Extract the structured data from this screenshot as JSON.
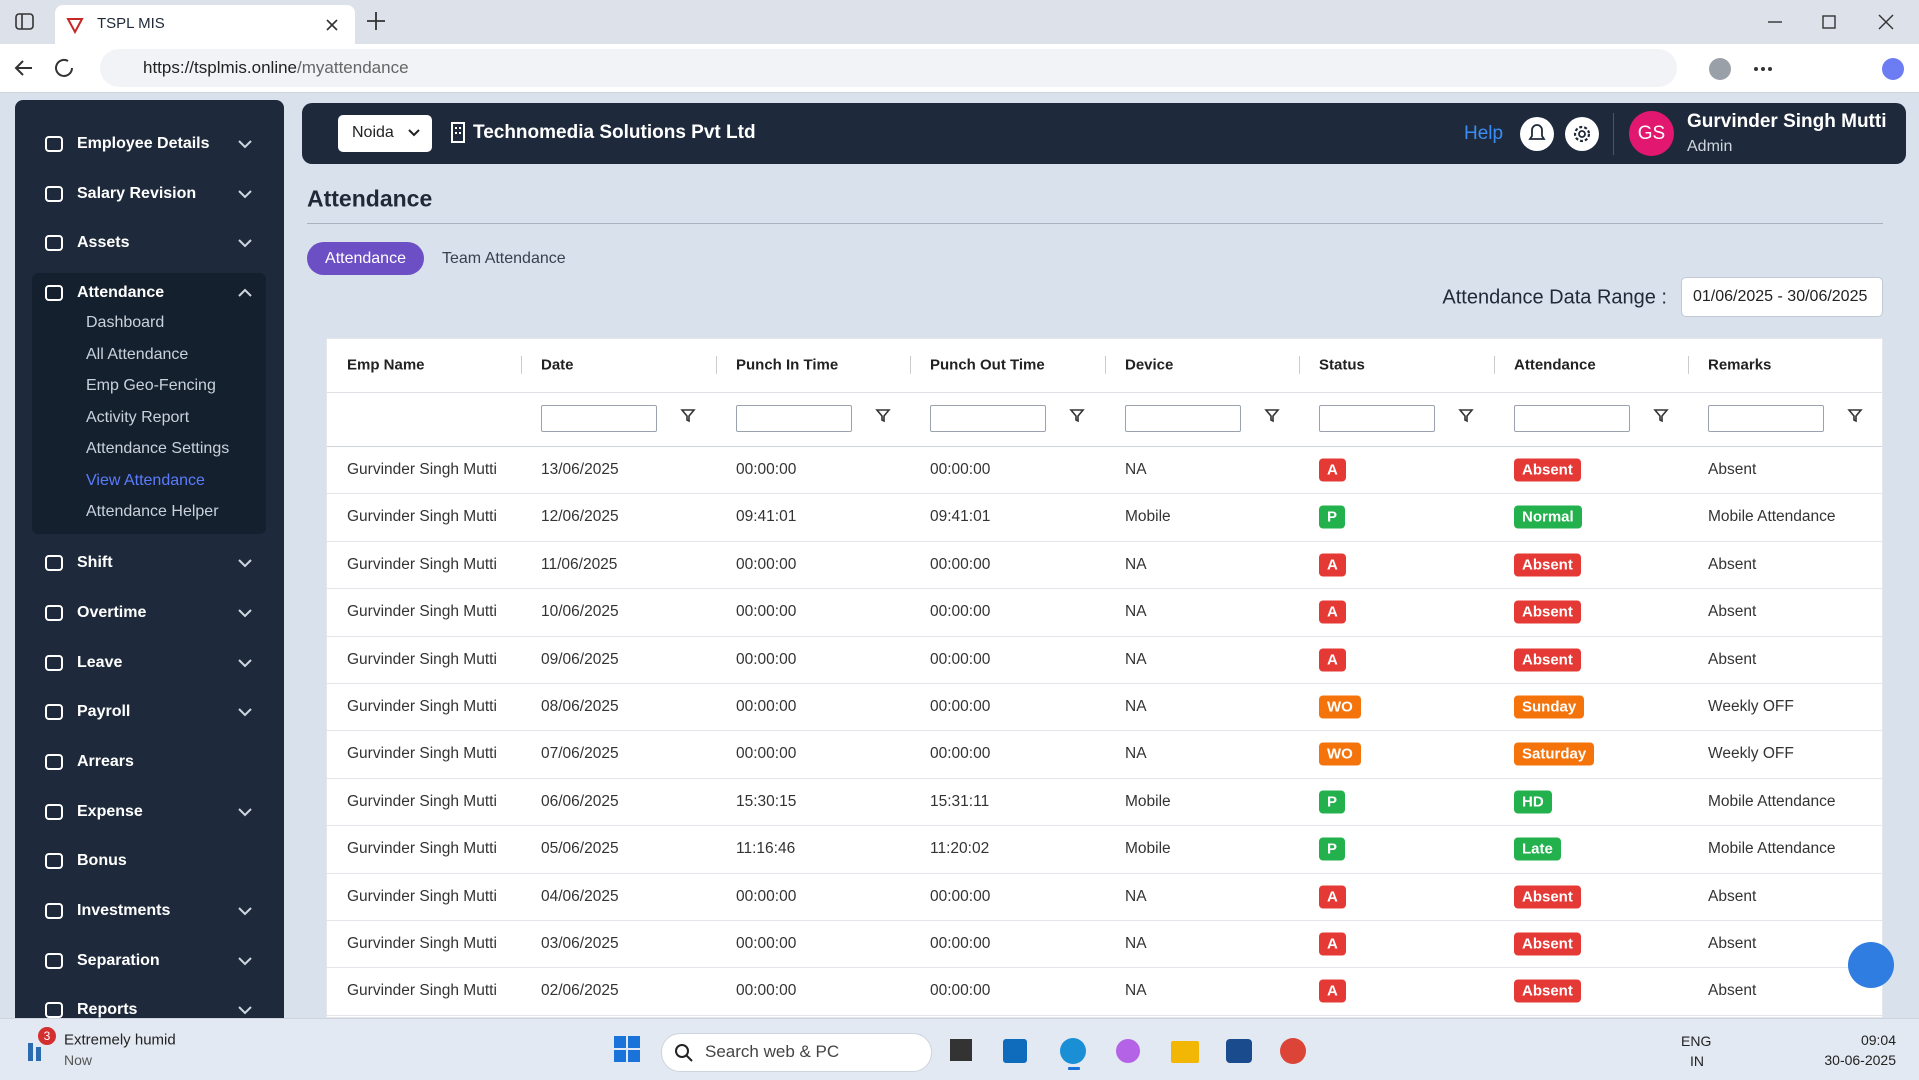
{
  "browser": {
    "tab_title": "TSPL MIS",
    "url_host": "https://tsplmis.online",
    "url_path": "/myattendance"
  },
  "sidebar": {
    "items": [
      {
        "label": "Employee Details",
        "has_submenu": true
      },
      {
        "label": "Salary Revision",
        "has_submenu": true
      },
      {
        "label": "Assets",
        "has_submenu": true
      },
      {
        "label": "Attendance",
        "has_submenu": true,
        "submenu": [
          {
            "label": "Dashboard"
          },
          {
            "label": "All Attendance"
          },
          {
            "label": "Emp Geo-Fencing"
          },
          {
            "label": "Activity Report"
          },
          {
            "label": "Attendance Settings"
          },
          {
            "label": "View Attendance",
            "active": true
          },
          {
            "label": "Attendance Helper"
          }
        ]
      },
      {
        "label": "Shift",
        "has_submenu": true
      },
      {
        "label": "Overtime",
        "has_submenu": true
      },
      {
        "label": "Leave",
        "has_submenu": true
      },
      {
        "label": "Payroll",
        "has_submenu": true
      },
      {
        "label": "Arrears",
        "has_submenu": false
      },
      {
        "label": "Expense",
        "has_submenu": true
      },
      {
        "label": "Bonus",
        "has_submenu": false
      },
      {
        "label": "Investments",
        "has_submenu": true
      },
      {
        "label": "Separation",
        "has_submenu": true
      },
      {
        "label": "Reports",
        "has_submenu": true
      }
    ]
  },
  "header": {
    "location": "Noida",
    "company": "Technomedia Solutions Pvt Ltd",
    "help": "Help",
    "avatar": "GS",
    "user_name": "Gurvinder Singh Mutti",
    "user_role": "Admin"
  },
  "page": {
    "title": "Attendance",
    "tabs": [
      "Attendance",
      "Team Attendance"
    ],
    "range_label": "Attendance Data Range :",
    "range_value": "01/06/2025 - 30/06/2025"
  },
  "table": {
    "columns": [
      "Emp Name",
      "Date",
      "Punch In Time",
      "Punch Out Time",
      "Device",
      "Status",
      "Attendance",
      "Remarks"
    ],
    "rows": [
      [
        "Gurvinder Singh Mutti",
        "13/06/2025",
        "00:00:00",
        "00:00:00",
        "NA",
        {
          "text": "A",
          "color": "#e53935"
        },
        {
          "text": "Absent",
          "color": "#e53935"
        },
        "Absent"
      ],
      [
        "Gurvinder Singh Mutti",
        "12/06/2025",
        "09:41:01",
        "09:41:01",
        "Mobile",
        {
          "text": "P",
          "color": "#22b14c"
        },
        {
          "text": "Normal",
          "color": "#22b14c"
        },
        "Mobile Attendance"
      ],
      [
        "Gurvinder Singh Mutti",
        "11/06/2025",
        "00:00:00",
        "00:00:00",
        "NA",
        {
          "text": "A",
          "color": "#e53935"
        },
        {
          "text": "Absent",
          "color": "#e53935"
        },
        "Absent"
      ],
      [
        "Gurvinder Singh Mutti",
        "10/06/2025",
        "00:00:00",
        "00:00:00",
        "NA",
        {
          "text": "A",
          "color": "#e53935"
        },
        {
          "text": "Absent",
          "color": "#e53935"
        },
        "Absent"
      ],
      [
        "Gurvinder Singh Mutti",
        "09/06/2025",
        "00:00:00",
        "00:00:00",
        "NA",
        {
          "text": "A",
          "color": "#e53935"
        },
        {
          "text": "Absent",
          "color": "#e53935"
        },
        "Absent"
      ],
      [
        "Gurvinder Singh Mutti",
        "08/06/2025",
        "00:00:00",
        "00:00:00",
        "NA",
        {
          "text": "WO",
          "color": "#f5730b"
        },
        {
          "text": "Sunday",
          "color": "#f5730b"
        },
        "Weekly OFF"
      ],
      [
        "Gurvinder Singh Mutti",
        "07/06/2025",
        "00:00:00",
        "00:00:00",
        "NA",
        {
          "text": "WO",
          "color": "#f5730b"
        },
        {
          "text": "Saturday",
          "color": "#f5730b"
        },
        "Weekly OFF"
      ],
      [
        "Gurvinder Singh Mutti",
        "06/06/2025",
        "15:30:15",
        "15:31:11",
        "Mobile",
        {
          "text": "P",
          "color": "#22b14c"
        },
        {
          "text": "HD",
          "color": "#22b14c"
        },
        "Mobile Attendance"
      ],
      [
        "Gurvinder Singh Mutti",
        "05/06/2025",
        "11:16:46",
        "11:20:02",
        "Mobile",
        {
          "text": "P",
          "color": "#22b14c"
        },
        {
          "text": "Late",
          "color": "#22b14c"
        },
        "Mobile Attendance"
      ],
      [
        "Gurvinder Singh Mutti",
        "04/06/2025",
        "00:00:00",
        "00:00:00",
        "NA",
        {
          "text": "A",
          "color": "#e53935"
        },
        {
          "text": "Absent",
          "color": "#e53935"
        },
        "Absent"
      ],
      [
        "Gurvinder Singh Mutti",
        "03/06/2025",
        "00:00:00",
        "00:00:00",
        "NA",
        {
          "text": "A",
          "color": "#e53935"
        },
        {
          "text": "Absent",
          "color": "#e53935"
        },
        "Absent"
      ],
      [
        "Gurvinder Singh Mutti",
        "02/06/2025",
        "00:00:00",
        "00:00:00",
        "NA",
        {
          "text": "A",
          "color": "#e53935"
        },
        {
          "text": "Absent",
          "color": "#e53935"
        },
        "Absent"
      ]
    ]
  },
  "taskbar": {
    "weather_badge": "3",
    "weather": "Extremely humid",
    "weather_time": "Now",
    "search": "Search web & PC",
    "lang": "ENG",
    "region": "IN",
    "time": "09:04",
    "date": "30-06-2025"
  }
}
